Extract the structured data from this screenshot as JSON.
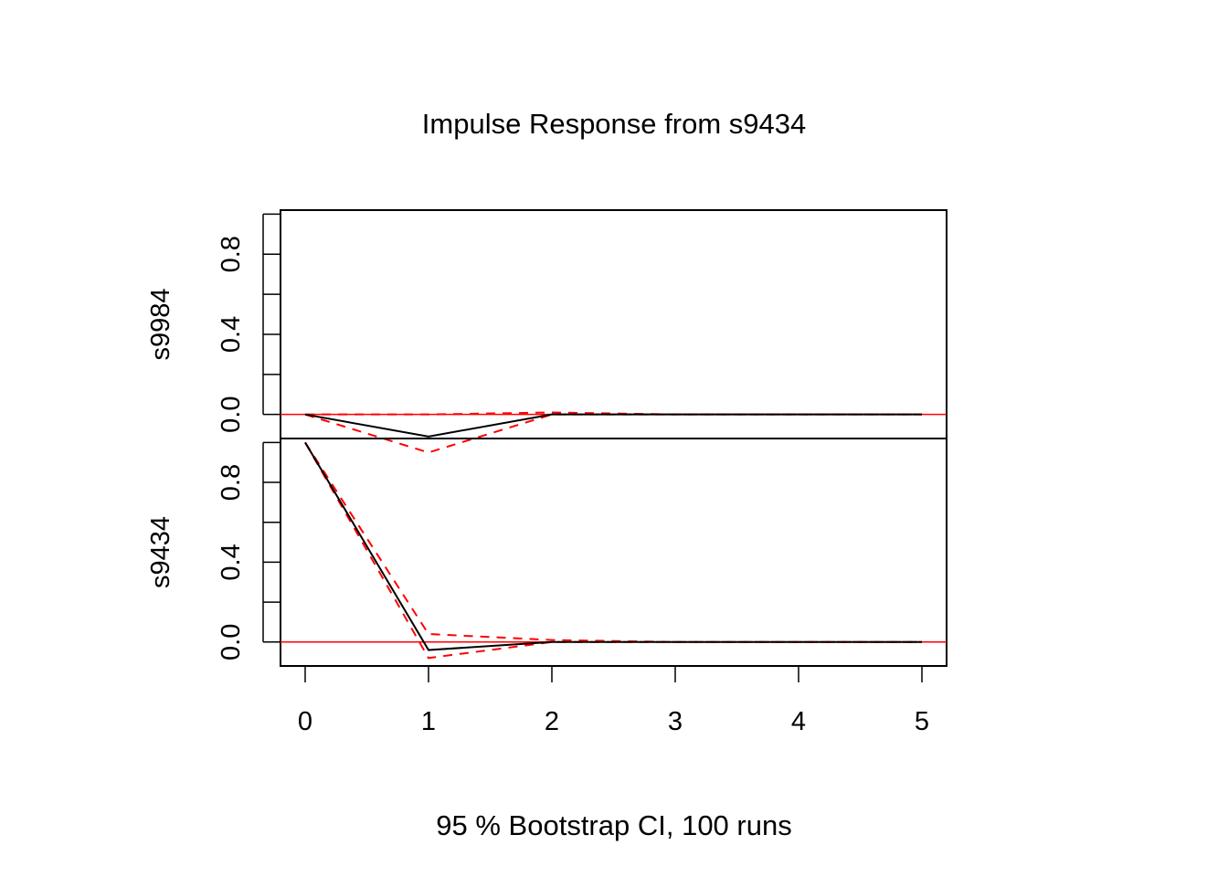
{
  "chart_data": {
    "type": "line",
    "title": "Impulse Response from s9434",
    "xlabel": "95 % Bootstrap CI,  100 runs",
    "x": [
      0,
      1,
      2,
      3,
      4,
      5
    ],
    "x_ticks": [
      "0",
      "1",
      "2",
      "3",
      "4",
      "5"
    ],
    "ylim": [
      -0.12,
      1.02
    ],
    "y_ticks": [
      "0.0",
      "0.4",
      "0.8"
    ],
    "colors": {
      "response": "#000000",
      "ci": "#ff0000",
      "zero_line": "#ff0000"
    },
    "panels": [
      {
        "name": "s9984",
        "response": [
          0.0,
          -0.11,
          0.0,
          0.0,
          0.0,
          0.0
        ],
        "lower": [
          0.0,
          -0.19,
          0.0,
          0.0,
          0.0,
          0.0
        ],
        "upper": [
          0.0,
          0.0,
          0.01,
          0.0,
          0.0,
          0.0
        ]
      },
      {
        "name": "s9434",
        "response": [
          1.0,
          -0.04,
          0.0,
          0.0,
          0.0,
          0.0
        ],
        "lower": [
          1.0,
          -0.08,
          0.0,
          0.0,
          0.0,
          0.0
        ],
        "upper": [
          1.0,
          0.04,
          0.01,
          0.0,
          0.0,
          0.0
        ]
      }
    ]
  }
}
